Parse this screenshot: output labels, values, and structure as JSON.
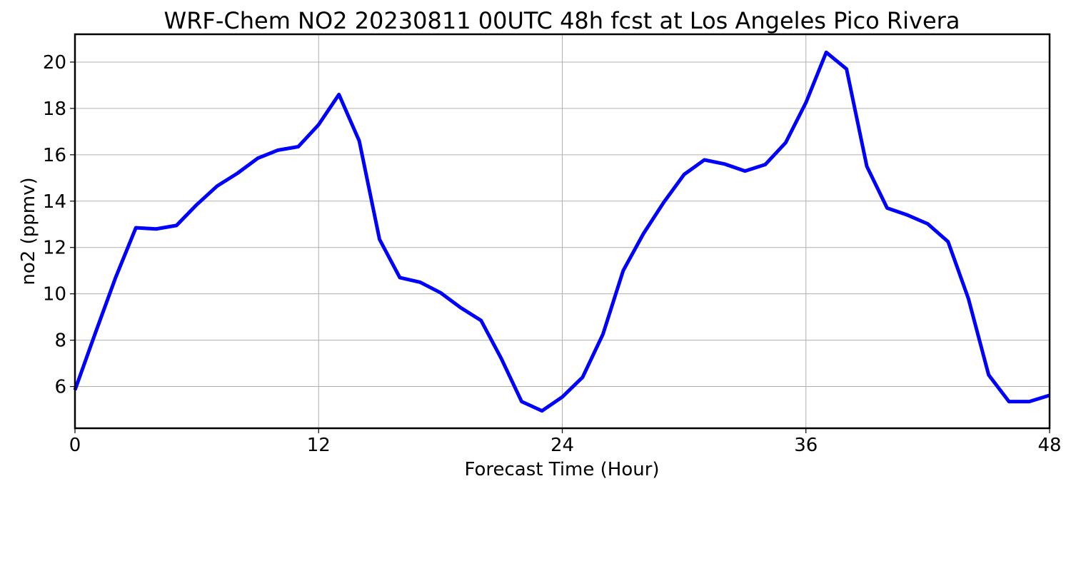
{
  "chart_data": {
    "type": "line",
    "title": "WRF-Chem NO2  20230811 00UTC 48h fcst at Los Angeles Pico Rivera",
    "xlabel": "Forecast Time (Hour)",
    "ylabel": "no2  (ppmv)",
    "xlim": [
      0,
      48
    ],
    "ylim": [
      4.2,
      21.2
    ],
    "xticks": [
      0,
      12,
      24,
      36,
      48
    ],
    "yticks": [
      6,
      8,
      10,
      12,
      14,
      16,
      18,
      20
    ],
    "grid": true,
    "x": [
      0,
      1,
      2,
      3,
      4,
      5,
      6,
      7,
      8,
      9,
      10,
      11,
      12,
      13,
      14,
      15,
      16,
      17,
      18,
      19,
      20,
      21,
      22,
      23,
      24,
      25,
      26,
      27,
      28,
      29,
      30,
      31,
      32,
      33,
      34,
      35,
      36,
      37,
      38,
      39,
      40,
      41,
      42,
      43,
      44,
      45,
      46,
      47,
      48
    ],
    "series": [
      {
        "color": "#0000ff",
        "values": [
          5.85,
          8.3,
          10.7,
          12.85,
          12.8,
          12.95,
          13.85,
          14.65,
          15.2,
          15.85,
          16.2,
          16.35,
          17.3,
          18.6,
          16.6,
          12.35,
          10.7,
          10.5,
          10.05,
          9.4,
          8.85,
          7.2,
          5.35,
          4.95,
          5.55,
          6.4,
          8.25,
          11.0,
          12.6,
          13.95,
          15.15,
          15.78,
          15.6,
          15.3,
          15.58,
          16.52,
          18.25,
          20.42,
          19.7,
          15.5,
          13.7,
          13.4,
          13.02,
          12.25,
          9.8,
          6.5,
          5.35,
          5.35,
          5.62
        ]
      }
    ]
  }
}
